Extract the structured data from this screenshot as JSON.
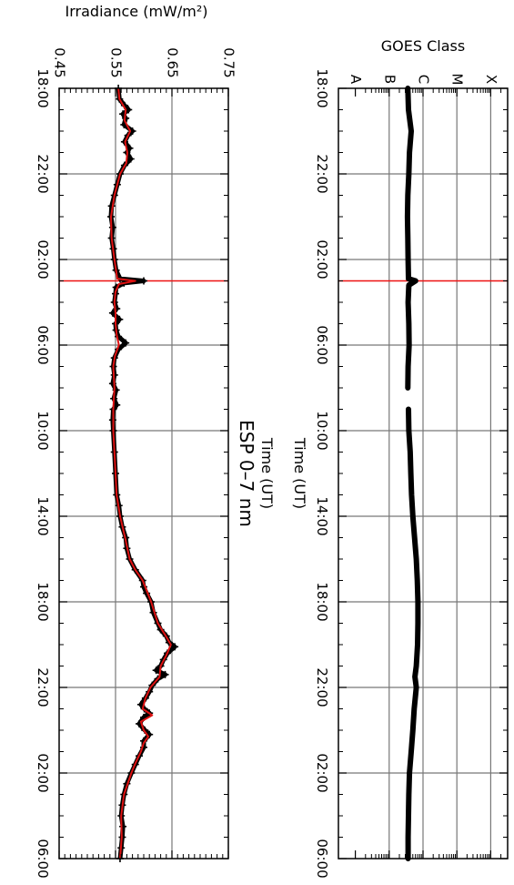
{
  "chart_data": [
    {
      "type": "line",
      "title": "ESP 0–7 nm",
      "xlabel": "Time (UT)",
      "ylabel": "Irradiance (mW/m²)",
      "ylim": [
        0.45,
        0.75
      ],
      "yticks": [
        "0.45",
        "0.55",
        "0.65",
        "0.75"
      ],
      "xlim": [
        0,
        36
      ],
      "xtick_hours": [
        0,
        4,
        8,
        12,
        16,
        20,
        24,
        28,
        32,
        36
      ],
      "xtick_labels": [
        "18:00",
        "22:00",
        "02:00",
        "06:00",
        "10:00",
        "14:00",
        "18:00",
        "22:00",
        "02:00",
        "06:00"
      ],
      "event_line_hour": 9.0,
      "colors": {
        "measured": "#000000",
        "model": "#dd1111",
        "event": "#ee1111",
        "grid": "#777777"
      },
      "series": [
        {
          "style": "black crosses",
          "points": [
            [
              0.0,
              0.555
            ],
            [
              0.5,
              0.557
            ],
            [
              0.8,
              0.566
            ],
            [
              1.0,
              0.573
            ],
            [
              1.2,
              0.563
            ],
            [
              1.4,
              0.568
            ],
            [
              1.7,
              0.565
            ],
            [
              2.0,
              0.58
            ],
            [
              2.2,
              0.572
            ],
            [
              2.5,
              0.566
            ],
            [
              2.8,
              0.575
            ],
            [
              3.0,
              0.57
            ],
            [
              3.3,
              0.577
            ],
            [
              3.6,
              0.566
            ],
            [
              4.0,
              0.558
            ],
            [
              4.5,
              0.553
            ],
            [
              5.0,
              0.548
            ],
            [
              5.5,
              0.543
            ],
            [
              6.0,
              0.542
            ],
            [
              6.5,
              0.545
            ],
            [
              7.0,
              0.543
            ],
            [
              7.5,
              0.546
            ],
            [
              8.0,
              0.548
            ],
            [
              8.5,
              0.551
            ],
            [
              8.9,
              0.558
            ],
            [
              9.0,
              0.6
            ],
            [
              9.1,
              0.565
            ],
            [
              9.3,
              0.551
            ],
            [
              9.6,
              0.55
            ],
            [
              10.0,
              0.548
            ],
            [
              10.3,
              0.552
            ],
            [
              10.5,
              0.545
            ],
            [
              10.8,
              0.557
            ],
            [
              11.0,
              0.55
            ],
            [
              11.3,
              0.551
            ],
            [
              11.6,
              0.555
            ],
            [
              11.9,
              0.568
            ],
            [
              12.2,
              0.555
            ],
            [
              12.6,
              0.548
            ],
            [
              13.0,
              0.546
            ],
            [
              13.4,
              0.548
            ],
            [
              13.8,
              0.545
            ],
            [
              14.1,
              0.551
            ],
            [
              14.5,
              0.547
            ],
            [
              14.8,
              0.552
            ],
            [
              15.0,
              0.546
            ],
            [
              15.5,
              0.545
            ],
            [
              16.0,
              0.546
            ],
            [
              17.0,
              0.548
            ],
            [
              18.0,
              0.55
            ],
            [
              19.0,
              0.552
            ],
            [
              19.5,
              0.556
            ],
            [
              20.0,
              0.558
            ],
            [
              20.5,
              0.562
            ],
            [
              21.0,
              0.568
            ],
            [
              21.5,
              0.57
            ],
            [
              22.0,
              0.575
            ],
            [
              22.5,
              0.585
            ],
            [
              23.0,
              0.598
            ],
            [
              23.3,
              0.6
            ],
            [
              23.6,
              0.605
            ],
            [
              24.0,
              0.613
            ],
            [
              24.5,
              0.617
            ],
            [
              25.0,
              0.625
            ],
            [
              25.3,
              0.63
            ],
            [
              25.6,
              0.64
            ],
            [
              25.9,
              0.645
            ],
            [
              26.1,
              0.655
            ],
            [
              26.4,
              0.642
            ],
            [
              26.7,
              0.635
            ],
            [
              27.0,
              0.63
            ],
            [
              27.2,
              0.622
            ],
            [
              27.4,
              0.638
            ],
            [
              27.6,
              0.625
            ],
            [
              27.9,
              0.615
            ],
            [
              28.2,
              0.61
            ],
            [
              28.5,
              0.603
            ],
            [
              28.8,
              0.595
            ],
            [
              29.0,
              0.601
            ],
            [
              29.2,
              0.61
            ],
            [
              29.4,
              0.6
            ],
            [
              29.7,
              0.592
            ],
            [
              30.0,
              0.602
            ],
            [
              30.2,
              0.61
            ],
            [
              30.5,
              0.6
            ],
            [
              30.8,
              0.6
            ],
            [
              31.2,
              0.592
            ],
            [
              31.6,
              0.585
            ],
            [
              32.0,
              0.578
            ],
            [
              32.5,
              0.57
            ],
            [
              33.0,
              0.565
            ],
            [
              33.5,
              0.562
            ],
            [
              34.0,
              0.56
            ],
            [
              34.5,
              0.563
            ],
            [
              35.0,
              0.562
            ],
            [
              35.5,
              0.56
            ],
            [
              36.0,
              0.558
            ]
          ]
        },
        {
          "style": "red line",
          "points": [
            [
              0.0,
              0.555
            ],
            [
              0.5,
              0.557
            ],
            [
              1.0,
              0.568
            ],
            [
              1.5,
              0.566
            ],
            [
              2.0,
              0.576
            ],
            [
              2.5,
              0.567
            ],
            [
              3.0,
              0.571
            ],
            [
              3.5,
              0.569
            ],
            [
              4.0,
              0.558
            ],
            [
              5.0,
              0.548
            ],
            [
              6.0,
              0.542
            ],
            [
              7.0,
              0.543
            ],
            [
              8.0,
              0.548
            ],
            [
              8.9,
              0.553
            ],
            [
              9.0,
              0.585
            ],
            [
              9.15,
              0.556
            ],
            [
              9.5,
              0.55
            ],
            [
              10.0,
              0.548
            ],
            [
              10.5,
              0.55
            ],
            [
              11.0,
              0.55
            ],
            [
              11.5,
              0.552
            ],
            [
              12.0,
              0.556
            ],
            [
              12.5,
              0.549
            ],
            [
              13.0,
              0.546
            ],
            [
              14.0,
              0.548
            ],
            [
              15.0,
              0.546
            ],
            [
              16.0,
              0.546
            ],
            [
              17.0,
              0.548
            ],
            [
              18.0,
              0.55
            ],
            [
              19.0,
              0.552
            ],
            [
              20.0,
              0.558
            ],
            [
              21.0,
              0.567
            ],
            [
              22.0,
              0.575
            ],
            [
              22.5,
              0.585
            ],
            [
              23.0,
              0.598
            ],
            [
              24.0,
              0.613
            ],
            [
              25.0,
              0.625
            ],
            [
              25.5,
              0.637
            ],
            [
              26.0,
              0.648
            ],
            [
              26.5,
              0.64
            ],
            [
              27.0,
              0.63
            ],
            [
              27.5,
              0.628
            ],
            [
              28.0,
              0.612
            ],
            [
              28.5,
              0.603
            ],
            [
              29.0,
              0.598
            ],
            [
              29.3,
              0.615
            ],
            [
              29.6,
              0.595
            ],
            [
              30.0,
              0.6
            ],
            [
              30.3,
              0.608
            ],
            [
              30.6,
              0.6
            ],
            [
              31.0,
              0.595
            ],
            [
              31.5,
              0.586
            ],
            [
              32.0,
              0.578
            ],
            [
              33.0,
              0.565
            ],
            [
              34.0,
              0.56
            ],
            [
              35.0,
              0.561
            ],
            [
              36.0,
              0.558
            ]
          ]
        }
      ]
    },
    {
      "type": "line",
      "title": "",
      "xlabel": "Time (UT)",
      "ylabel": "GOES Class",
      "classes": [
        "A",
        "B",
        "C",
        "M",
        "X"
      ],
      "ylim": [
        0,
        5
      ],
      "xlim": [
        0,
        36
      ],
      "xtick_hours": [
        0,
        4,
        8,
        12,
        16,
        20,
        24,
        28,
        32,
        36
      ],
      "xtick_labels": [
        "18:00",
        "22:00",
        "02:00",
        "06:00",
        "10:00",
        "14:00",
        "18:00",
        "22:00",
        "02:00",
        "06:00"
      ],
      "event_line_hour": 9.0,
      "colors": {
        "flux": "#000000",
        "event": "#ee1111",
        "grid": "#777777"
      },
      "series": [
        {
          "style": "thick black line",
          "segments": [
            [
              [
                0.0,
                2.05
              ],
              [
                1.0,
                2.07
              ],
              [
                2.0,
                2.15
              ],
              [
                3.0,
                2.1
              ],
              [
                4.0,
                2.08
              ],
              [
                5.0,
                2.05
              ],
              [
                6.0,
                2.04
              ],
              [
                7.0,
                2.05
              ],
              [
                8.0,
                2.06
              ],
              [
                8.9,
                2.07
              ],
              [
                9.0,
                2.28
              ],
              [
                9.2,
                2.08
              ],
              [
                10.0,
                2.06
              ],
              [
                11.0,
                2.08
              ],
              [
                12.0,
                2.09
              ],
              [
                13.0,
                2.06
              ],
              [
                14.0,
                2.05
              ]
            ],
            [
              [
                15.0,
                2.07
              ],
              [
                16.0,
                2.08
              ],
              [
                17.0,
                2.12
              ],
              [
                18.0,
                2.14
              ],
              [
                19.0,
                2.16
              ],
              [
                20.0,
                2.2
              ],
              [
                21.0,
                2.25
              ],
              [
                22.0,
                2.3
              ],
              [
                23.0,
                2.33
              ],
              [
                24.0,
                2.35
              ],
              [
                25.0,
                2.35
              ],
              [
                26.0,
                2.34
              ],
              [
                27.0,
                2.3
              ],
              [
                27.5,
                2.26
              ],
              [
                28.0,
                2.3
              ],
              [
                29.0,
                2.24
              ],
              [
                30.0,
                2.2
              ],
              [
                31.0,
                2.15
              ],
              [
                32.0,
                2.1
              ],
              [
                33.0,
                2.08
              ],
              [
                34.0,
                2.07
              ],
              [
                35.0,
                2.06
              ],
              [
                36.0,
                2.06
              ]
            ]
          ]
        }
      ]
    }
  ]
}
